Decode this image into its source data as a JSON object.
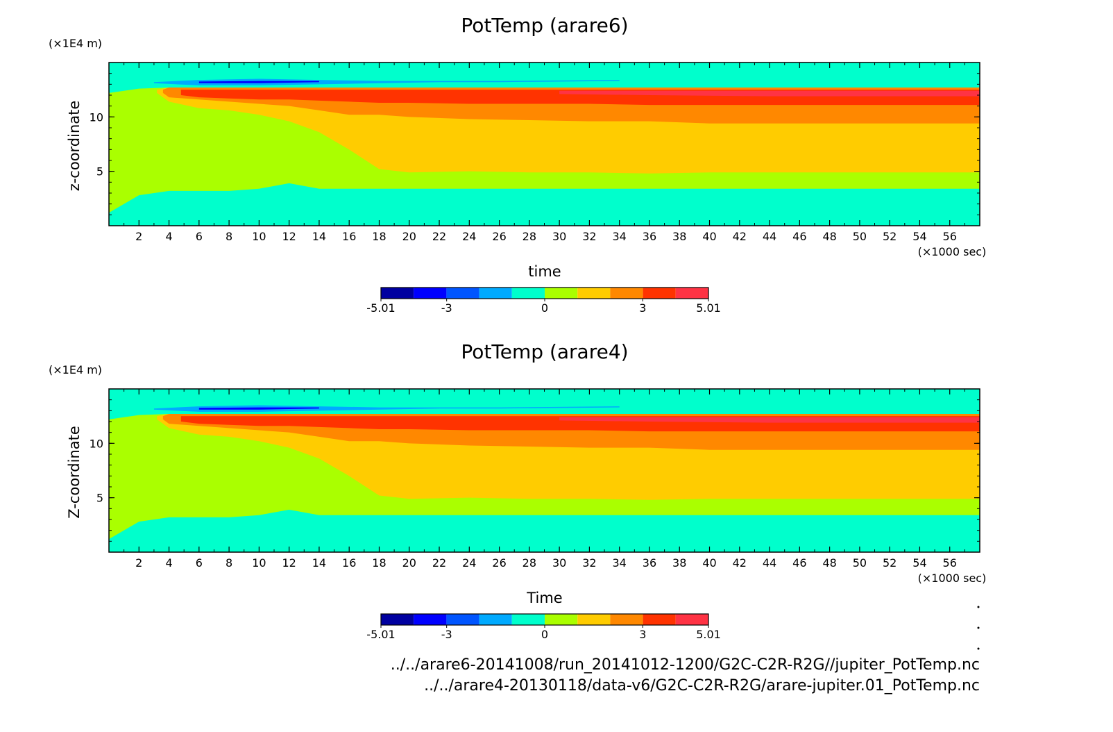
{
  "palette": [
    "#0000a0",
    "#0000ff",
    "#0055ff",
    "#00aaff",
    "#00ffcc",
    "#aaff00",
    "#ffcc00",
    "#ff8800",
    "#ff3300",
    "#ff3344"
  ],
  "chart_data": [
    {
      "type": "heatmap",
      "title": "PotTemp (arare6)",
      "xlabel": "time",
      "ylabel": "z-coordinate",
      "x_unit": "(×1000 sec)",
      "y_unit": "(×1E4 m)",
      "xlim": [
        0,
        58
      ],
      "ylim": [
        0,
        15
      ],
      "x_ticks": [
        "2",
        "4",
        "6",
        "8",
        "10",
        "12",
        "14",
        "16",
        "18",
        "20",
        "22",
        "24",
        "26",
        "28",
        "30",
        "32",
        "34",
        "36",
        "38",
        "40",
        "42",
        "44",
        "46",
        "48",
        "50",
        "52",
        "54",
        "56"
      ],
      "y_ticks": [
        "5",
        "10"
      ],
      "colorbar": {
        "min": -5.01,
        "max": 5.01,
        "labels": [
          "-5.01",
          "-3",
          "0",
          "3",
          "5.01"
        ]
      },
      "bands": [
        {
          "color_index": 4,
          "y0": 0,
          "y1": 15
        },
        {
          "color_index": 5,
          "x_points": [
            0,
            2,
            4,
            6,
            8,
            10,
            12,
            14,
            16,
            18,
            20,
            24,
            28,
            32,
            36,
            40,
            44,
            48,
            52,
            58
          ],
          "y_low": [
            1.2,
            2.8,
            3.2,
            3.2,
            3.2,
            3.4,
            3.9,
            3.4,
            3.4,
            3.4,
            3.4,
            3.4,
            3.4,
            3.4,
            3.4,
            3.4,
            3.4,
            3.4,
            3.4,
            3.4
          ],
          "y_high": [
            12.2,
            12.6,
            12.7,
            12.7,
            12.7,
            12.7,
            12.7,
            12.7,
            12.7,
            12.7,
            12.7,
            12.7,
            12.7,
            12.7,
            12.7,
            12.7,
            12.7,
            12.7,
            12.7,
            12.7
          ]
        },
        {
          "color_index": 6,
          "x_points": [
            3.2,
            4,
            6,
            8,
            10,
            12,
            14,
            16,
            18,
            20,
            24,
            28,
            32,
            36,
            40,
            44,
            48,
            52,
            58
          ],
          "y_low": [
            12.2,
            11.4,
            10.8,
            10.6,
            10.2,
            9.6,
            8.6,
            7,
            5.2,
            4.9,
            5.0,
            4.9,
            4.9,
            4.8,
            4.9,
            4.9,
            4.9,
            4.9,
            4.9
          ],
          "y_high": [
            12.5,
            12.7,
            12.7,
            12.7,
            12.7,
            12.7,
            12.7,
            12.7,
            12.7,
            12.7,
            12.7,
            12.7,
            12.7,
            12.7,
            12.7,
            12.7,
            12.7,
            12.7,
            12.7
          ]
        },
        {
          "color_index": 7,
          "x_points": [
            3.6,
            4,
            6,
            8,
            10,
            12,
            14,
            16,
            18,
            20,
            24,
            28,
            32,
            36,
            40,
            44,
            48,
            52,
            58
          ],
          "y_low": [
            12.2,
            11.8,
            11.6,
            11.4,
            11.2,
            11.0,
            10.6,
            10.2,
            10.2,
            10.0,
            9.8,
            9.7,
            9.6,
            9.6,
            9.4,
            9.4,
            9.4,
            9.4,
            9.4
          ],
          "y_high": [
            12.5,
            12.7,
            12.7,
            12.7,
            12.7,
            12.7,
            12.7,
            12.7,
            12.7,
            12.7,
            12.7,
            12.7,
            12.7,
            12.7,
            12.7,
            12.7,
            12.7,
            12.7,
            12.7
          ]
        },
        {
          "color_index": 8,
          "x_points": [
            4.8,
            6,
            8,
            10,
            12,
            14,
            16,
            18,
            20,
            24,
            28,
            32,
            36,
            40,
            44,
            48,
            52,
            58
          ],
          "y_low": [
            12.0,
            11.8,
            11.7,
            11.6,
            11.6,
            11.5,
            11.4,
            11.3,
            11.3,
            11.2,
            11.2,
            11.2,
            11.1,
            11.1,
            11.1,
            11.1,
            11.1,
            11.1
          ],
          "y_high": [
            12.5,
            12.5,
            12.5,
            12.5,
            12.5,
            12.5,
            12.5,
            12.5,
            12.5,
            12.5,
            12.5,
            12.5,
            12.5,
            12.5,
            12.5,
            12.5,
            12.5,
            12.5
          ]
        },
        {
          "color_index": 9,
          "x_points": [
            30,
            36,
            44,
            52,
            58
          ],
          "y_low": [
            12.1,
            12.0,
            11.9,
            11.9,
            11.9
          ],
          "y_high": [
            12.4,
            12.4,
            12.4,
            12.4,
            12.4
          ]
        },
        {
          "color_index": 3,
          "x_points": [
            3,
            6,
            10,
            14,
            18,
            22,
            26,
            34
          ],
          "y_low": [
            13.1,
            12.9,
            12.9,
            13.0,
            13.1,
            13.2,
            13.2,
            13.3
          ],
          "y_high": [
            13.2,
            13.4,
            13.5,
            13.4,
            13.3,
            13.3,
            13.3,
            13.4
          ]
        },
        {
          "color_index": 1,
          "x_points": [
            6,
            10,
            14
          ],
          "y_low": [
            13.1,
            13.1,
            13.2
          ],
          "y_high": [
            13.25,
            13.3,
            13.3
          ]
        }
      ]
    },
    {
      "type": "heatmap",
      "title": "PotTemp (arare4)",
      "xlabel": "Time",
      "ylabel": "Z-coordinate",
      "x_unit": "(×1000 sec)",
      "y_unit": "(×1E4 m)",
      "xlim": [
        0,
        58
      ],
      "ylim": [
        0,
        15
      ],
      "x_ticks": [
        "2",
        "4",
        "6",
        "8",
        "10",
        "12",
        "14",
        "16",
        "18",
        "20",
        "22",
        "24",
        "26",
        "28",
        "30",
        "32",
        "34",
        "36",
        "38",
        "40",
        "42",
        "44",
        "46",
        "48",
        "50",
        "52",
        "54",
        "56"
      ],
      "y_ticks": [
        "5",
        "10"
      ],
      "colorbar": {
        "min": -5.01,
        "max": 5.01,
        "labels": [
          "-5.01",
          "-3",
          "0",
          "3",
          "5.01"
        ]
      },
      "bands": [
        {
          "color_index": 4,
          "y0": 0,
          "y1": 15
        },
        {
          "color_index": 5,
          "x_points": [
            0,
            2,
            4,
            6,
            8,
            10,
            12,
            14,
            16,
            18,
            20,
            24,
            28,
            32,
            36,
            40,
            44,
            48,
            52,
            58
          ],
          "y_low": [
            1.2,
            2.8,
            3.2,
            3.2,
            3.2,
            3.4,
            3.9,
            3.4,
            3.4,
            3.4,
            3.4,
            3.4,
            3.4,
            3.4,
            3.4,
            3.4,
            3.4,
            3.4,
            3.4,
            3.4
          ],
          "y_high": [
            12.2,
            12.6,
            12.7,
            12.7,
            12.7,
            12.7,
            12.7,
            12.7,
            12.7,
            12.7,
            12.7,
            12.7,
            12.7,
            12.7,
            12.7,
            12.7,
            12.7,
            12.7,
            12.7,
            12.7
          ]
        },
        {
          "color_index": 6,
          "x_points": [
            3.2,
            4,
            6,
            8,
            10,
            12,
            14,
            16,
            18,
            20,
            24,
            28,
            32,
            36,
            40,
            44,
            48,
            52,
            58
          ],
          "y_low": [
            12.2,
            11.4,
            10.8,
            10.6,
            10.2,
            9.6,
            8.6,
            7,
            5.2,
            4.9,
            5.0,
            4.9,
            4.9,
            4.8,
            4.9,
            4.9,
            4.9,
            4.9,
            4.9
          ],
          "y_high": [
            12.5,
            12.7,
            12.7,
            12.7,
            12.7,
            12.7,
            12.7,
            12.7,
            12.7,
            12.7,
            12.7,
            12.7,
            12.7,
            12.7,
            12.7,
            12.7,
            12.7,
            12.7,
            12.7
          ]
        },
        {
          "color_index": 7,
          "x_points": [
            3.6,
            4,
            6,
            8,
            10,
            12,
            14,
            16,
            18,
            20,
            24,
            28,
            32,
            36,
            40,
            44,
            48,
            52,
            58
          ],
          "y_low": [
            12.2,
            11.8,
            11.6,
            11.4,
            11.2,
            11.0,
            10.6,
            10.2,
            10.2,
            10.0,
            9.8,
            9.7,
            9.6,
            9.6,
            9.4,
            9.4,
            9.4,
            9.4,
            9.4
          ],
          "y_high": [
            12.5,
            12.7,
            12.7,
            12.7,
            12.7,
            12.7,
            12.7,
            12.7,
            12.7,
            12.7,
            12.7,
            12.7,
            12.7,
            12.7,
            12.7,
            12.7,
            12.7,
            12.7,
            12.7
          ]
        },
        {
          "color_index": 8,
          "x_points": [
            4.8,
            6,
            8,
            10,
            12,
            14,
            16,
            18,
            20,
            24,
            28,
            32,
            36,
            40,
            44,
            48,
            52,
            58
          ],
          "y_low": [
            12.0,
            11.8,
            11.7,
            11.6,
            11.6,
            11.5,
            11.4,
            11.3,
            11.3,
            11.2,
            11.2,
            11.2,
            11.1,
            11.1,
            11.1,
            11.1,
            11.1,
            11.1
          ],
          "y_high": [
            12.5,
            12.5,
            12.5,
            12.5,
            12.5,
            12.5,
            12.5,
            12.5,
            12.5,
            12.5,
            12.5,
            12.5,
            12.5,
            12.5,
            12.5,
            12.5,
            12.5,
            12.5
          ]
        },
        {
          "color_index": 9,
          "x_points": [
            30,
            36,
            44,
            52,
            58
          ],
          "y_low": [
            12.1,
            12.0,
            11.9,
            11.9,
            11.9
          ],
          "y_high": [
            12.4,
            12.4,
            12.4,
            12.4,
            12.4
          ]
        },
        {
          "color_index": 3,
          "x_points": [
            3,
            6,
            10,
            14,
            18,
            22,
            26,
            34
          ],
          "y_low": [
            13.1,
            12.9,
            12.9,
            13.0,
            13.1,
            13.2,
            13.2,
            13.3
          ],
          "y_high": [
            13.2,
            13.4,
            13.5,
            13.4,
            13.3,
            13.3,
            13.3,
            13.4
          ]
        },
        {
          "color_index": 1,
          "x_points": [
            6,
            10,
            14
          ],
          "y_low": [
            13.1,
            13.1,
            13.2
          ],
          "y_high": [
            13.25,
            13.3,
            13.3
          ]
        }
      ]
    }
  ],
  "footer": {
    "path1": "../../arare6-20141008/run_20141012-1200/G2C-C2R-R2G//jupiter_PotTemp.nc",
    "path2": "../../arare4-20130118/data-v6/G2C-C2R-R2G/arare-jupiter.01_PotTemp.nc"
  }
}
